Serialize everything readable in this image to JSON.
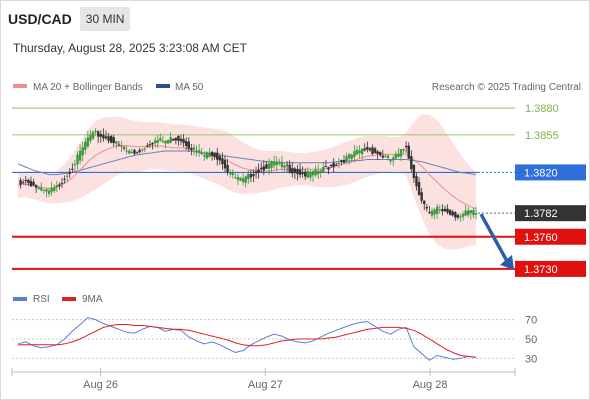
{
  "header": {
    "symbol": "USD/CAD",
    "timeframe": "30 MIN",
    "timestamp": "Thursday, August 28, 2025 3:23:08 AM CET"
  },
  "legend": {
    "ma20": {
      "label": "MA 20 + Bollinger Bands",
      "color": "#f08c8c"
    },
    "ma50": {
      "label": "MA 50",
      "color": "#2b4f8c"
    },
    "credit": "Research © 2025 Trading Central",
    "rsi": {
      "label": "RSI",
      "color": "#5b7fd6"
    },
    "rsi9": {
      "label": "9MA",
      "color": "#e02020"
    }
  },
  "chart_data": [
    {
      "type": "candlestick",
      "ylim": [
        1.3715,
        1.3895
      ],
      "x_ticks": [
        {
          "label": "Aug 26",
          "pos": 0.167
        },
        {
          "label": "Aug 27",
          "pos": 0.5
        },
        {
          "label": "Aug 28",
          "pos": 0.833
        }
      ],
      "levels": [
        {
          "value": 1.388,
          "label": "1.3880",
          "kind": "target",
          "color": "#7ab648"
        },
        {
          "value": 1.3855,
          "label": "1.3855",
          "kind": "target",
          "color": "#7ab648"
        },
        {
          "value": 1.382,
          "label": "1.3820",
          "kind": "pivot",
          "color": "#2f6fdc"
        },
        {
          "value": 1.3782,
          "label": "1.3782",
          "kind": "last",
          "color": "#333333"
        },
        {
          "value": 1.376,
          "label": "1.3760",
          "kind": "support",
          "color": "#e01010"
        },
        {
          "value": 1.373,
          "label": "1.3730",
          "kind": "support",
          "color": "#e01010"
        }
      ],
      "path": [
        1.381,
        1.3812,
        1.3808,
        1.3803,
        1.3802,
        1.3806,
        1.3815,
        1.3825,
        1.3838,
        1.3852,
        1.3856,
        1.3853,
        1.385,
        1.3845,
        1.384,
        1.3838,
        1.3842,
        1.3848,
        1.385,
        1.3849,
        1.3852,
        1.3851,
        1.3845,
        1.384,
        1.3836,
        1.3838,
        1.3833,
        1.3822,
        1.3815,
        1.3812,
        1.3818,
        1.3822,
        1.3826,
        1.3829,
        1.3827,
        1.3823,
        1.382,
        1.3818,
        1.3819,
        1.3822,
        1.3825,
        1.3828,
        1.3832,
        1.3836,
        1.384,
        1.3842,
        1.3839,
        1.3835,
        1.3832,
        1.3836,
        1.3845,
        1.3815,
        1.3795,
        1.378,
        1.3786,
        1.3784,
        1.3781,
        1.3779,
        1.3783,
        1.3782
      ],
      "ma20": [
        1.3808,
        1.3809,
        1.3808,
        1.3806,
        1.3805,
        1.3806,
        1.381,
        1.3815,
        1.3822,
        1.383,
        1.3836,
        1.384,
        1.3843,
        1.3845,
        1.3845,
        1.3844,
        1.3844,
        1.3845,
        1.3845,
        1.3844,
        1.3843,
        1.3843,
        1.3842,
        1.384,
        1.3838,
        1.3836,
        1.3834,
        1.3831,
        1.3827,
        1.3824,
        1.3822,
        1.3821,
        1.3821,
        1.3822,
        1.3823,
        1.3823,
        1.3823,
        1.3823,
        1.3823,
        1.3823,
        1.3824,
        1.3826,
        1.3828,
        1.383,
        1.3833,
        1.3835,
        1.3836,
        1.3837,
        1.3837,
        1.3837,
        1.3837,
        1.3832,
        1.3826,
        1.3818,
        1.3811,
        1.3804,
        1.3798,
        1.3793,
        1.3789,
        1.3786
      ],
      "bb_width": [
        0.0012,
        0.0012,
        0.0013,
        0.0013,
        0.0014,
        0.0015,
        0.0018,
        0.0022,
        0.0026,
        0.003,
        0.0032,
        0.0031,
        0.0029,
        0.0027,
        0.0025,
        0.0024,
        0.0023,
        0.0022,
        0.0022,
        0.0022,
        0.0022,
        0.0022,
        0.0022,
        0.0023,
        0.0024,
        0.0025,
        0.0026,
        0.0027,
        0.0026,
        0.0024,
        0.0022,
        0.002,
        0.0019,
        0.0018,
        0.0017,
        0.0016,
        0.0015,
        0.0015,
        0.0016,
        0.0017,
        0.0018,
        0.0019,
        0.002,
        0.002,
        0.002,
        0.0019,
        0.0018,
        0.0017,
        0.0016,
        0.0016,
        0.002,
        0.0035,
        0.0048,
        0.0056,
        0.0058,
        0.0055,
        0.005,
        0.0044,
        0.0038,
        0.0034
      ],
      "ma50": [
        1.3828,
        1.3825,
        1.3822,
        1.382,
        1.3818,
        1.3818,
        1.3819,
        1.382,
        1.3822,
        1.3824,
        1.3826,
        1.3828,
        1.383,
        1.3832,
        1.3834,
        1.3836,
        1.3837,
        1.3838,
        1.3839,
        1.384,
        1.384,
        1.384,
        1.384,
        1.3839,
        1.3838,
        1.3837,
        1.3836,
        1.3835,
        1.3834,
        1.3833,
        1.3832,
        1.3831,
        1.383,
        1.383,
        1.3829,
        1.3829,
        1.3829,
        1.3829,
        1.3829,
        1.3829,
        1.3829,
        1.383,
        1.383,
        1.3831,
        1.3831,
        1.3832,
        1.3832,
        1.3832,
        1.3832,
        1.3832,
        1.3832,
        1.3831,
        1.383,
        1.3828,
        1.3826,
        1.3824,
        1.3822,
        1.382,
        1.3819,
        1.3818
      ],
      "projection": [
        1.3782,
        1.373
      ]
    },
    {
      "type": "line",
      "ylim": [
        20,
        80
      ],
      "y_ticks": [
        70,
        50,
        30
      ],
      "rsi": [
        45,
        47,
        43,
        41,
        42,
        44,
        50,
        58,
        65,
        72,
        70,
        66,
        63,
        60,
        57,
        56,
        60,
        63,
        62,
        58,
        60,
        59,
        52,
        48,
        45,
        47,
        44,
        40,
        36,
        38,
        44,
        48,
        52,
        55,
        53,
        49,
        47,
        46,
        48,
        52,
        56,
        59,
        62,
        65,
        67,
        68,
        63,
        58,
        55,
        60,
        62,
        42,
        35,
        28,
        33,
        31,
        29,
        30,
        32,
        31
      ],
      "ma9": [
        44,
        44,
        44,
        44,
        44,
        44,
        45,
        47,
        50,
        54,
        58,
        62,
        64,
        65,
        65,
        64,
        64,
        63,
        62,
        61,
        60,
        60,
        59,
        57,
        55,
        53,
        51,
        49,
        46,
        44,
        43,
        43,
        44,
        46,
        48,
        49,
        50,
        50,
        50,
        50,
        51,
        52,
        54,
        56,
        58,
        60,
        61,
        62,
        62,
        62,
        61,
        59,
        55,
        50,
        45,
        40,
        36,
        33,
        32,
        31
      ]
    }
  ]
}
